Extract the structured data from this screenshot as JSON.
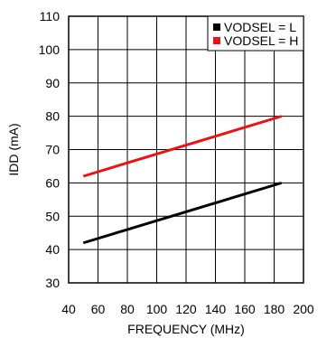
{
  "chart_data": {
    "type": "line",
    "title": "",
    "xlabel": "FREQUENCY (MHz)",
    "ylabel": "IDD (mA)",
    "xlim": [
      40,
      200
    ],
    "ylim": [
      30,
      110
    ],
    "xticks": [
      40,
      60,
      80,
      100,
      120,
      140,
      160,
      180,
      200
    ],
    "yticks": [
      30,
      40,
      50,
      60,
      70,
      80,
      90,
      100,
      110
    ],
    "grid": true,
    "legend_position": "top-right",
    "series": [
      {
        "name": "VODSEL = L",
        "color": "#000000",
        "x": [
          50,
          185
        ],
        "y": [
          42,
          60
        ]
      },
      {
        "name": "VODSEL = H",
        "color": "#ee1111",
        "x": [
          50,
          185
        ],
        "y": [
          62,
          80
        ]
      }
    ]
  }
}
